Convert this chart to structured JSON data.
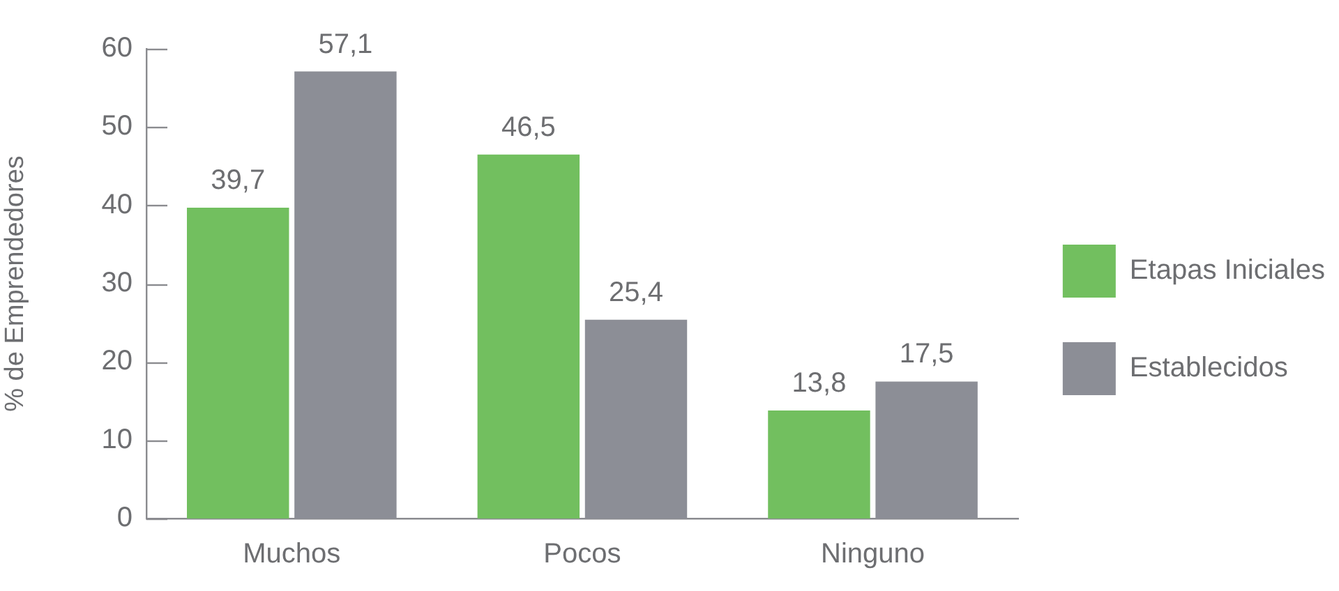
{
  "chart_data": {
    "type": "bar",
    "ylabel": "% de Emprendedores",
    "categories": [
      "Muchos",
      "Pocos",
      "Ninguno"
    ],
    "series": [
      {
        "name": "Etapas Iniciales",
        "color": "#72bf5f",
        "values": [
          39.7,
          46.5,
          13.8
        ],
        "value_labels": [
          "39,7",
          "46,5",
          "13,8"
        ]
      },
      {
        "name": "Establecidos",
        "color": "#8c8e96",
        "values": [
          57.1,
          25.4,
          17.5
        ],
        "value_labels": [
          "57,1",
          "25,4",
          "17,5"
        ]
      }
    ],
    "ylim": [
      0,
      60
    ],
    "yticks": [
      0,
      10,
      20,
      30,
      40,
      50,
      60
    ],
    "grid": false,
    "legend": "right"
  }
}
